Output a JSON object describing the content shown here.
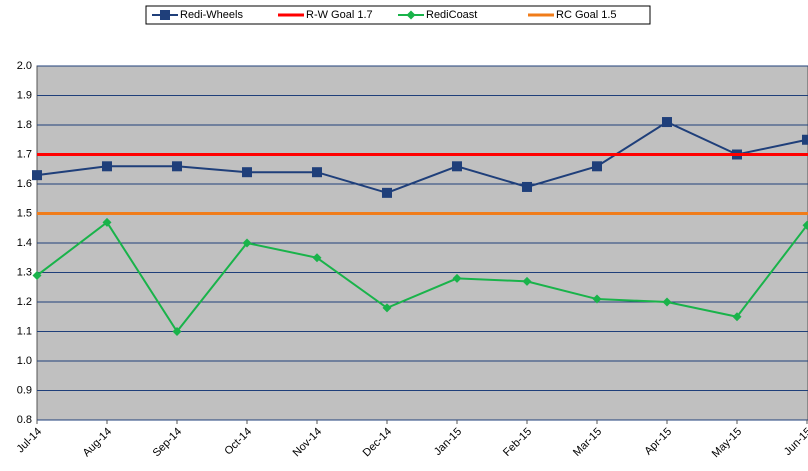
{
  "chart_data": {
    "type": "line",
    "categories": [
      "Jul-14",
      "Aug-14",
      "Sep-14",
      "Oct-14",
      "Nov-14",
      "Dec-14",
      "Jan-15",
      "Feb-15",
      "Mar-15",
      "Apr-15",
      "May-15",
      "Jun-15"
    ],
    "series": [
      {
        "name": "Redi-Wheels",
        "color": "#1f3f7a",
        "marker": "square",
        "values": [
          1.63,
          1.66,
          1.66,
          1.64,
          1.64,
          1.57,
          1.66,
          1.59,
          1.66,
          1.81,
          1.7,
          1.75
        ]
      },
      {
        "name": "R-W Goal 1.7",
        "color": "#ff0000",
        "value": 1.7
      },
      {
        "name": "RediCoast",
        "color": "#19b34a",
        "marker": "diamond",
        "values": [
          1.29,
          1.47,
          1.1,
          1.4,
          1.35,
          1.18,
          1.28,
          1.27,
          1.21,
          1.2,
          1.15,
          1.46
        ]
      },
      {
        "name": "RC Goal 1.5",
        "color": "#f07c1a",
        "value": 1.5
      }
    ],
    "ylim": [
      0.8,
      2.0
    ],
    "yticks": [
      0.8,
      0.9,
      {
        "value": 1,
        "label": "1.0"
      },
      1.1,
      1.2,
      1.3,
      1.4,
      1.5,
      1.6,
      1.7,
      1.8,
      1.9,
      {
        "value": 2,
        "label": "2.0"
      }
    ],
    "grid": true,
    "legend": "top",
    "background": "#c0c0c0"
  }
}
